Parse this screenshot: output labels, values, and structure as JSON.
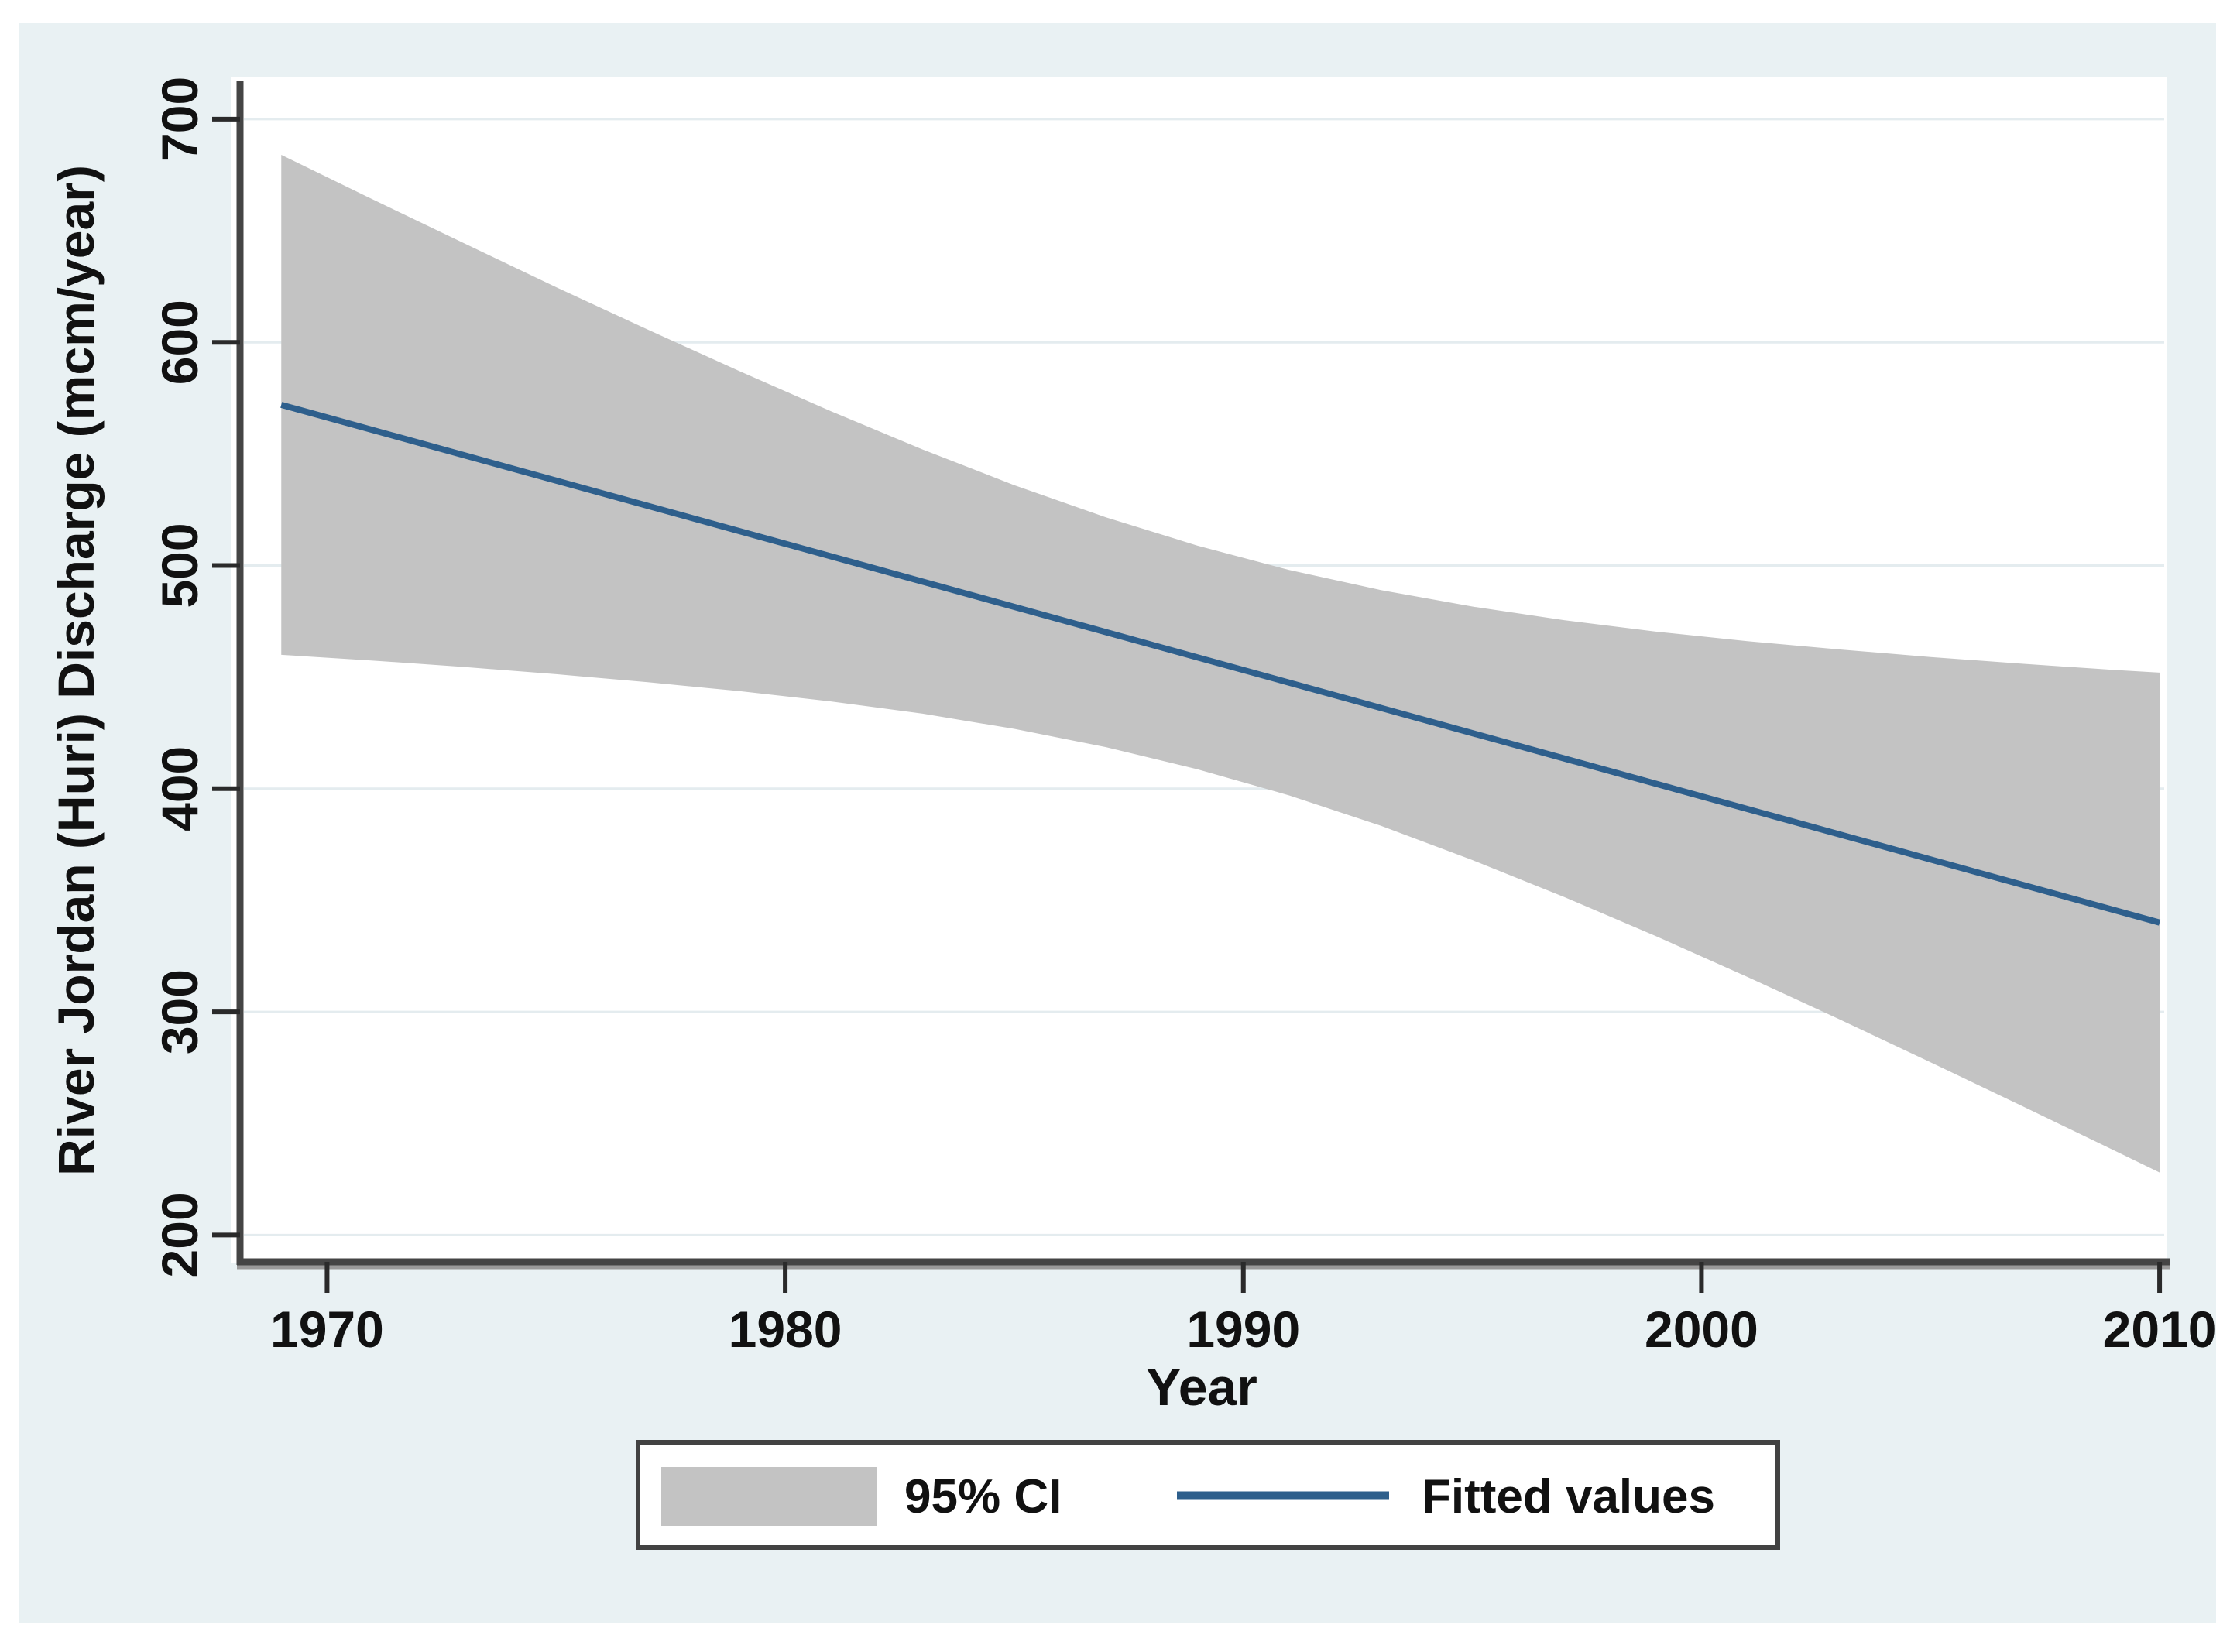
{
  "figure": {
    "background_color": "#e9f1f3",
    "plot_background_color": "#ffffff",
    "gridline_color": "#e4ecef",
    "axis_color": "#454545",
    "axis_shadow_color": "#9a9a9a",
    "tick_color": "#2a2a2a",
    "text_color": "#111111",
    "legend_border_color": "#424242",
    "legend_background_color": "#ffffff"
  },
  "chart_data": {
    "type": "area",
    "subtype": "linear-fit-with-95%-confidence-band",
    "title": "",
    "xlabel": "Year",
    "ylabel": "River Jordan (Huri) Discharge (mcm/year)",
    "xlim": [
      1968.1,
      2010.1
    ],
    "ylim": [
      188,
      718
    ],
    "x_ticks": [
      1970,
      1980,
      1990,
      2000,
      2010
    ],
    "y_ticks": [
      200,
      300,
      400,
      500,
      600,
      700
    ],
    "grid": "horizontal-only",
    "legend_position": "bottom-center",
    "series": [
      {
        "name": "95% CI",
        "type": "band",
        "color": "#c3c3c3",
        "x": [
          1969,
          1971,
          1973,
          1975,
          1977,
          1979,
          1981,
          1983,
          1985,
          1987,
          1989,
          1991,
          1993,
          1995,
          1997,
          1999,
          2001,
          2003,
          2005,
          2007,
          2009,
          2010
        ],
        "upper": [
          684.0,
          664.0,
          644.3,
          624.7,
          605.7,
          587.1,
          569.1,
          552.0,
          536.0,
          521.6,
          508.9,
          498.0,
          489.0,
          481.6,
          475.5,
          470.4,
          466.1,
          462.4,
          459.0,
          456.0,
          453.2,
          452.0
        ],
        "lower": [
          460.0,
          457.4,
          454.5,
          451.3,
          447.7,
          443.7,
          439.1,
          433.6,
          426.8,
          418.6,
          408.7,
          397.0,
          383.4,
          368.0,
          351.5,
          334.0,
          315.7,
          296.8,
          277.4,
          257.8,
          238.0,
          228.0
        ]
      },
      {
        "name": "Fitted values",
        "type": "line",
        "color": "#2e5f8c",
        "x": [
          1969,
          2010
        ],
        "y": [
          572,
          340
        ]
      }
    ],
    "legend": {
      "entries": [
        {
          "label": "95% CI",
          "swatch": "area-swatch"
        },
        {
          "label": "Fitted values",
          "swatch": "line-swatch"
        }
      ]
    }
  }
}
